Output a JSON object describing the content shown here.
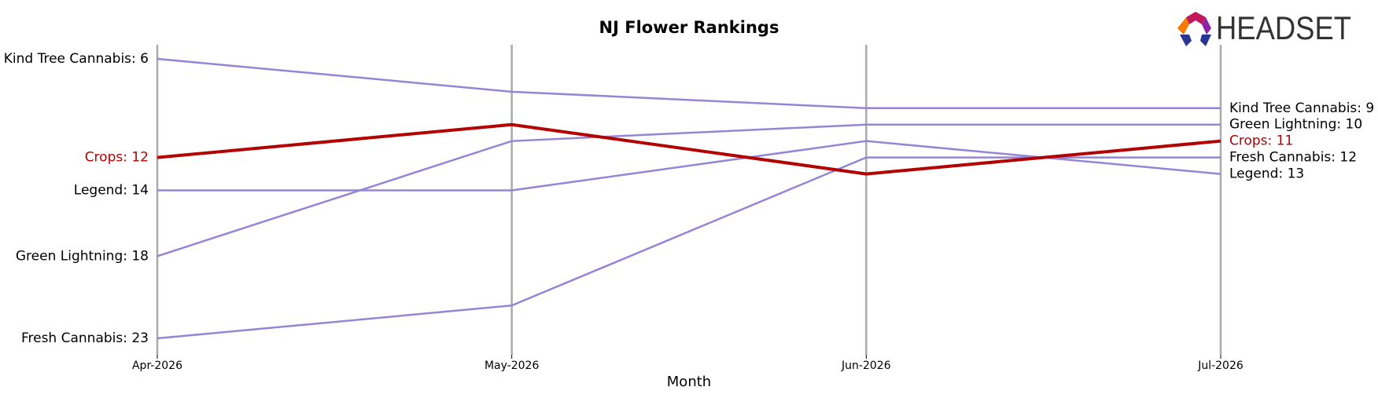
{
  "chart_data": {
    "type": "bump",
    "title": "NJ Flower Rankings",
    "x_label": "Month",
    "logo": "HEADSET",
    "categories": [
      "Apr-2026",
      "May-2026",
      "Jun-2026",
      "Jul-2026"
    ],
    "ylim": [
      24,
      5
    ],
    "series": [
      {
        "name": "Kind Tree Cannabis",
        "color": "#9386d6",
        "values": [
          6,
          8,
          9,
          9
        ],
        "value_labels": [
          "Kind Tree Cannabis: 6",
          null,
          null,
          "Kind Tree Cannabis: 9"
        ]
      },
      {
        "name": "Green Lightning",
        "color": "#9386d6",
        "values": [
          18,
          11,
          10,
          10
        ],
        "value_labels": [
          "Green Lightning: 18",
          null,
          null,
          "Green Lightning: 10"
        ]
      },
      {
        "name": "Fresh Cannabis",
        "color": "#9386d6",
        "values": [
          23,
          21,
          12,
          12
        ],
        "value_labels": [
          "Fresh Cannabis: 23",
          null,
          null,
          "Fresh Cannabis: 12"
        ]
      },
      {
        "name": "Legend",
        "color": "#9386d6",
        "values": [
          14,
          14,
          11,
          13
        ],
        "value_labels": [
          "Legend: 14",
          null,
          null,
          "Legend: 13"
        ]
      },
      {
        "name": "Crops",
        "color": "#b30000",
        "values": [
          12,
          10,
          13,
          11
        ],
        "value_labels": [
          "Crops: 12",
          null,
          null,
          "Crops: 11"
        ],
        "highlight": true
      }
    ]
  }
}
